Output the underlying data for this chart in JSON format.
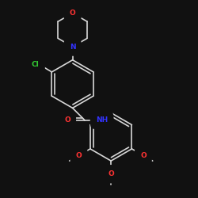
{
  "bg_color": "#111111",
  "bond_color": "#d8d8d8",
  "atom_colors": {
    "O": "#ff3333",
    "N": "#3333ff",
    "Cl": "#33cc33",
    "C": "#d8d8d8"
  },
  "fig_size": [
    2.5,
    2.5
  ],
  "dpi": 100,
  "lw": 1.2,
  "font_size": 6.5
}
